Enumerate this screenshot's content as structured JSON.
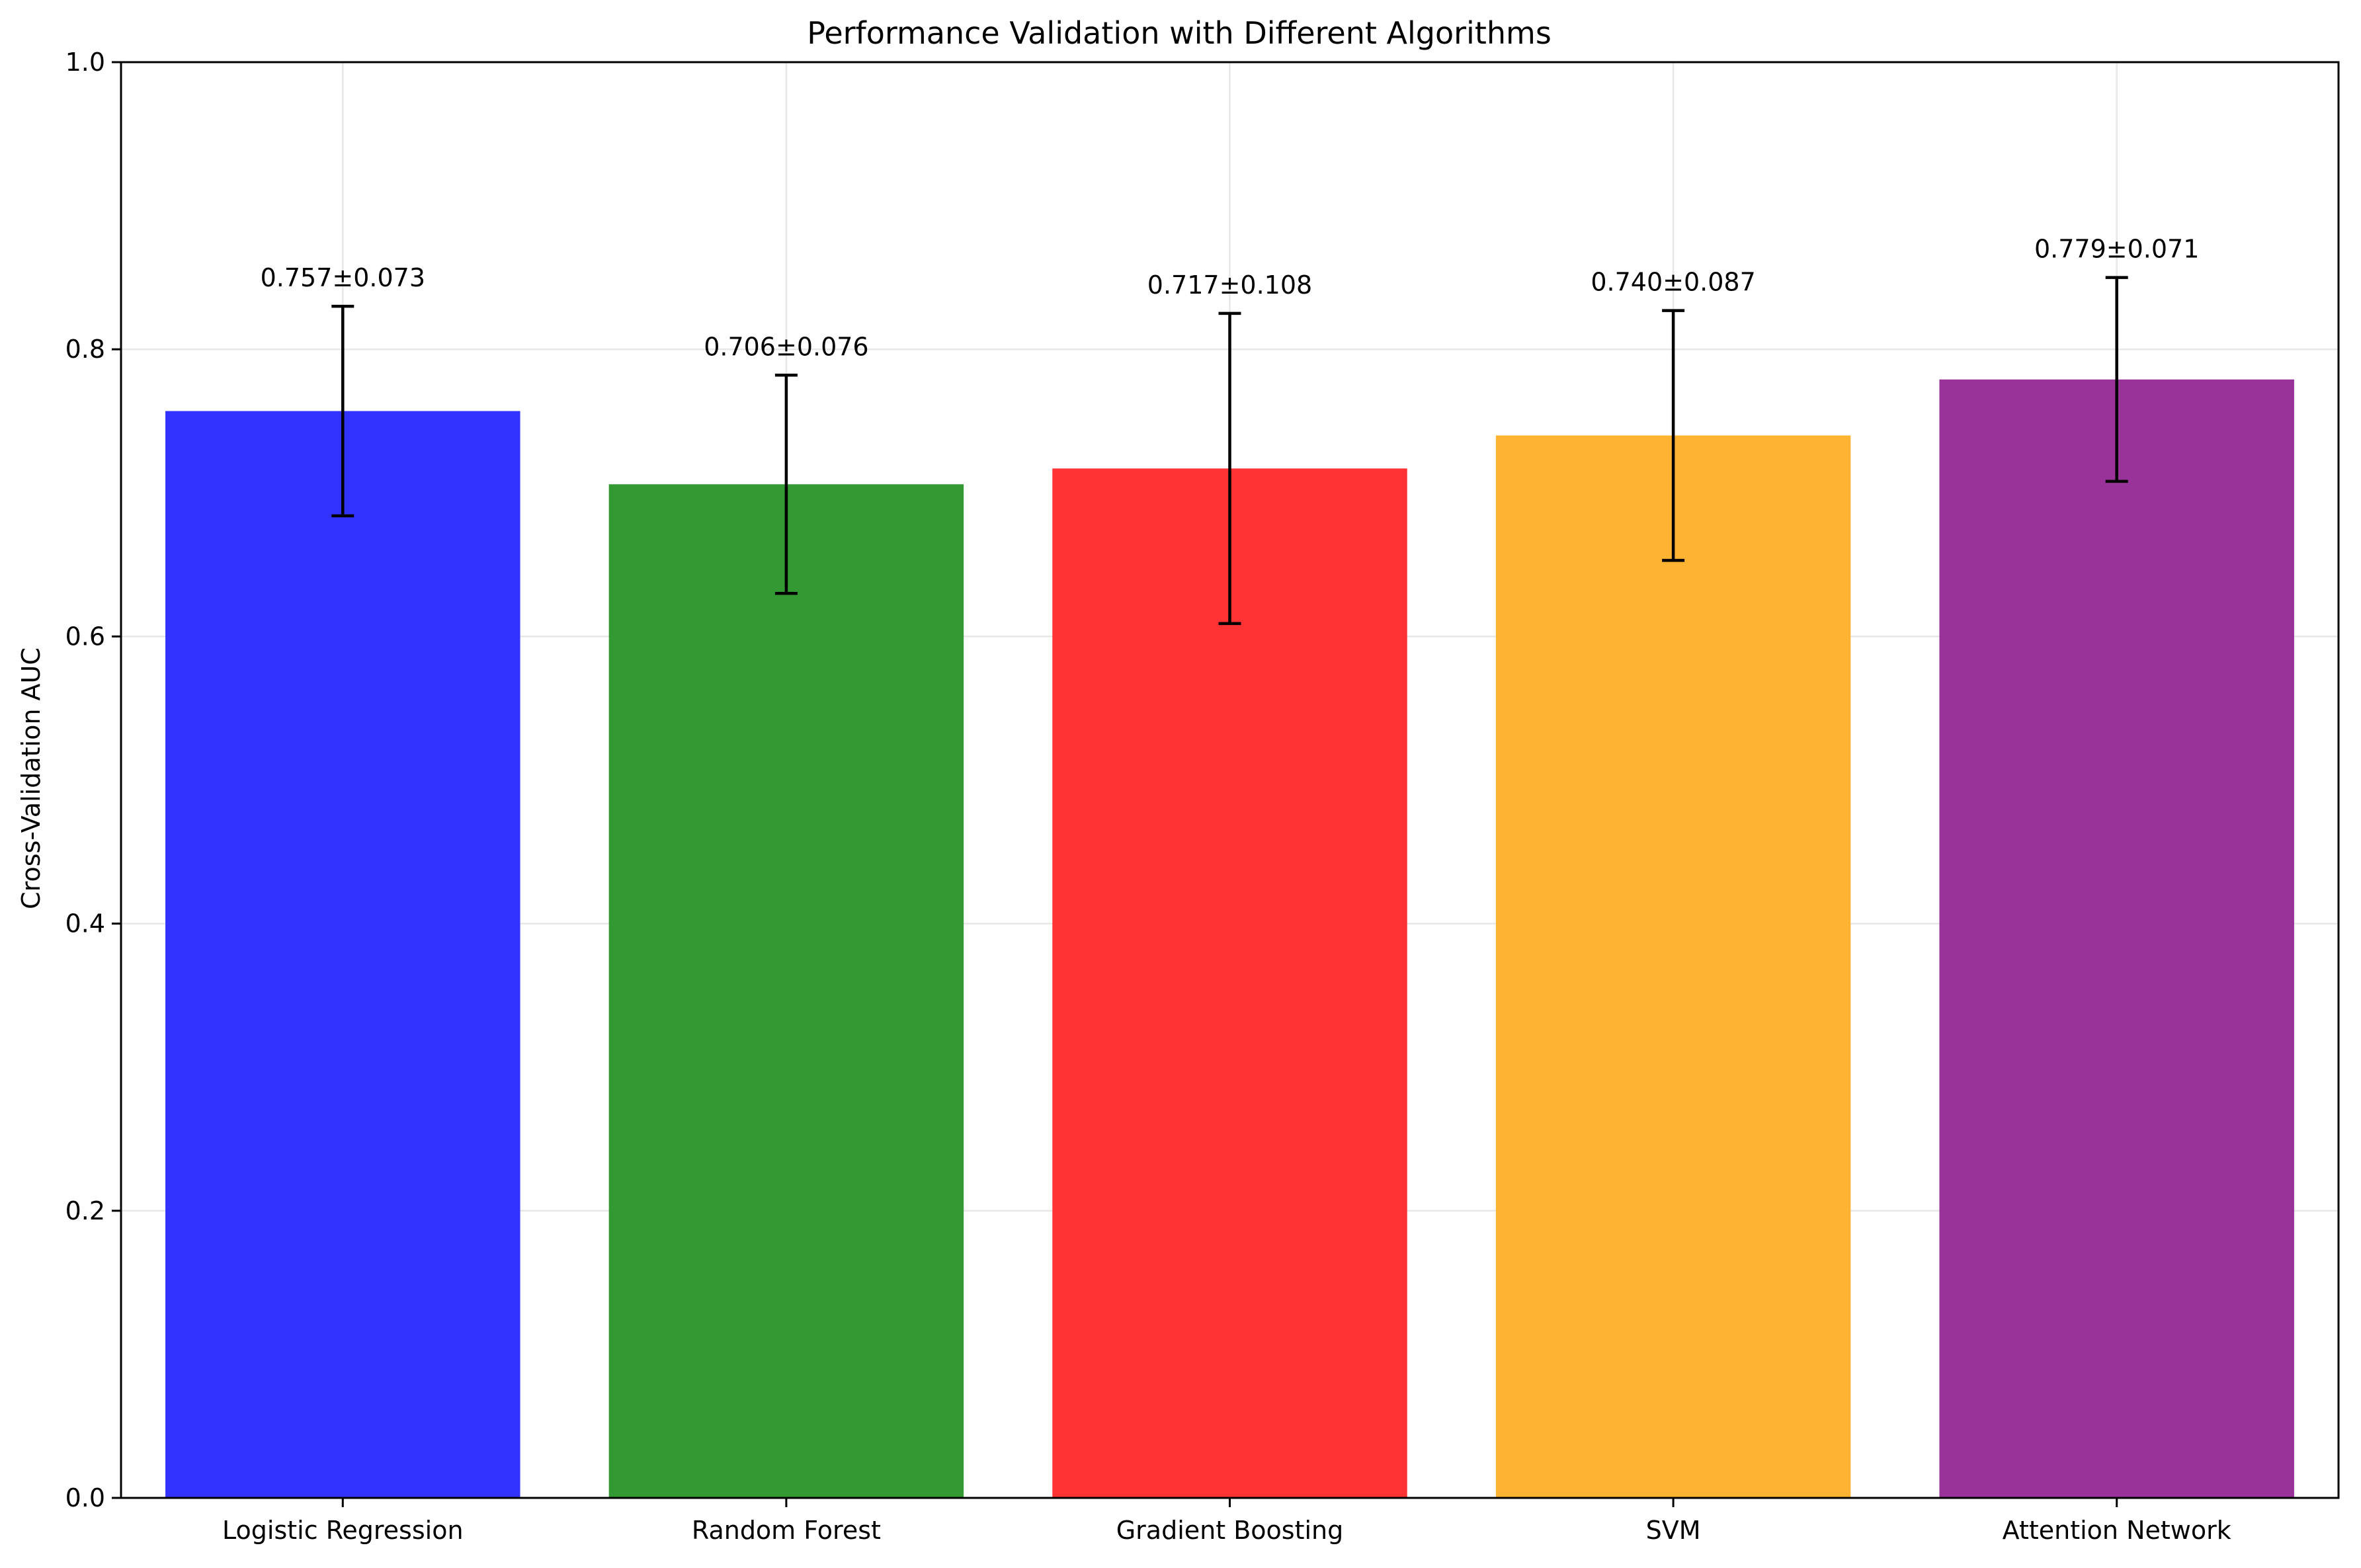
{
  "chart_data": {
    "type": "bar",
    "title": "Performance Validation with Different Algorithms",
    "xlabel": "",
    "ylabel": "Cross-Validation AUC",
    "ylim": [
      0,
      1.0
    ],
    "yticks": [
      "0.0",
      "0.2",
      "0.4",
      "0.6",
      "0.8",
      "1.0"
    ],
    "grid": true,
    "categories": [
      "Logistic Regression",
      "Random Forest",
      "Gradient Boosting",
      "SVM",
      "Attention Network"
    ],
    "values": [
      0.757,
      0.706,
      0.717,
      0.74,
      0.779
    ],
    "errors": [
      0.073,
      0.076,
      0.108,
      0.087,
      0.071
    ],
    "labels": [
      "0.757±0.073",
      "0.706±0.076",
      "0.717±0.108",
      "0.740±0.087",
      "0.779±0.071"
    ],
    "colors": [
      "#3333ff",
      "#339933",
      "#ff3333",
      "#ffb333",
      "#993399"
    ]
  }
}
